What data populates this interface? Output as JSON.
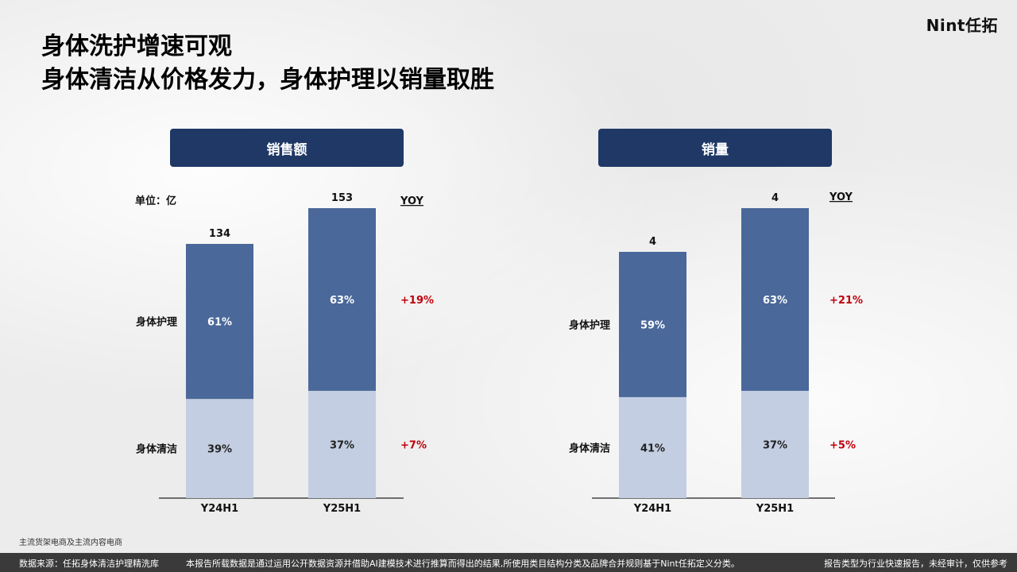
{
  "logo": "Nint任拓",
  "title_line1": "身体洗护增速可观",
  "title_line2": "身体清洁从价格发力，身体护理以销量取胜",
  "footnote": "主流货架电商及主流内容电商",
  "footer": {
    "source": "数据来源：任拓身体清洁护理精洗库",
    "disclaimer": "本报告所载数据是通过运用公开数据资源并借助AI建模技术进行推算而得出的结果,所使用类目结构分类及品牌合并规则基于Nint任拓定义分类。",
    "report_type": "报告类型为行业快速报告，未经审计，仅供参考"
  },
  "chart_data": [
    {
      "type": "bar",
      "header": "销售额",
      "unit_label": "单位：亿",
      "yoy_label": "YOY",
      "categories": [
        "Y24H1",
        "Y25H1"
      ],
      "totals": [
        "134",
        "153"
      ],
      "series": [
        {
          "name": "身体清洁",
          "values": [
            39,
            37
          ],
          "labels": [
            "39%",
            "37%"
          ],
          "color": "#c3cee2",
          "yoy": "+7%"
        },
        {
          "name": "身体护理",
          "values": [
            61,
            63
          ],
          "labels": [
            "61%",
            "63%"
          ],
          "color": "#4a6899",
          "yoy": "+19%"
        }
      ],
      "colors": {
        "yoy": "#c0000a",
        "label_on_dark": "#ffffff",
        "label_on_light": "#222222"
      }
    },
    {
      "type": "bar",
      "header": "销量",
      "unit_label": "",
      "yoy_label": "YOY",
      "categories": [
        "Y24H1",
        "Y25H1"
      ],
      "totals": [
        "4",
        "4"
      ],
      "series": [
        {
          "name": "身体清洁",
          "values": [
            41,
            37
          ],
          "labels": [
            "41%",
            "37%"
          ],
          "color": "#c3cee2",
          "yoy": "+5%"
        },
        {
          "name": "身体护理",
          "values": [
            59,
            63
          ],
          "labels": [
            "59%",
            "63%"
          ],
          "color": "#4a6899",
          "yoy": "+21%"
        }
      ],
      "colors": {
        "yoy": "#c0000a",
        "label_on_dark": "#ffffff",
        "label_on_light": "#222222"
      }
    }
  ]
}
